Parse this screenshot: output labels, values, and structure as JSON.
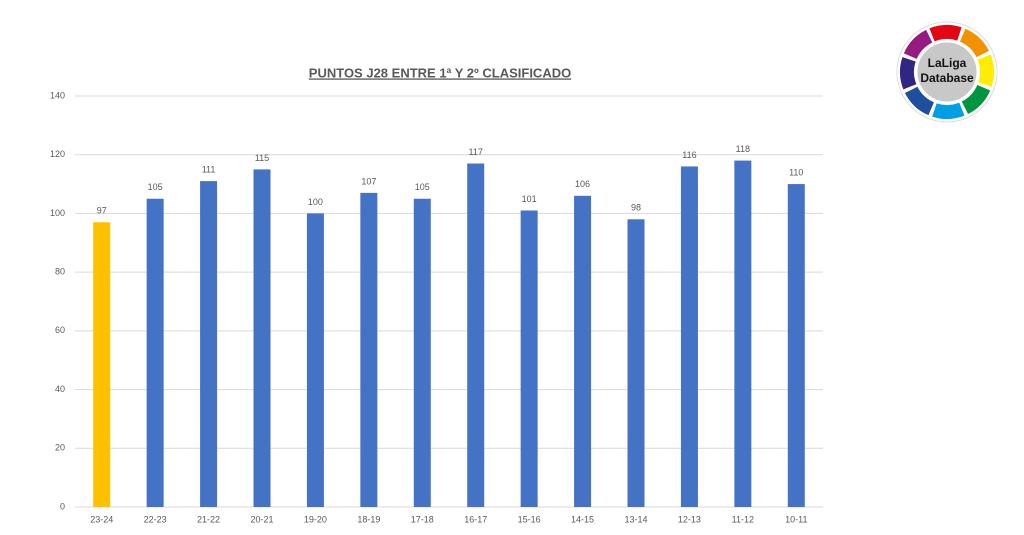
{
  "chart_data": {
    "type": "bar",
    "title": "PUNTOS J28 ENTRE 1ª Y 2º CLASIFICADO",
    "categories": [
      "23-24",
      "22-23",
      "21-22",
      "20-21",
      "19-20",
      "18-19",
      "17-18",
      "16-17",
      "15-16",
      "14-15",
      "13-14",
      "12-13",
      "11-12",
      "10-11"
    ],
    "values": [
      97,
      105,
      111,
      115,
      100,
      107,
      105,
      117,
      101,
      106,
      98,
      116,
      118,
      110
    ],
    "colors": [
      "#ffc000",
      "#4472c4",
      "#4472c4",
      "#4472c4",
      "#4472c4",
      "#4472c4",
      "#4472c4",
      "#4472c4",
      "#4472c4",
      "#4472c4",
      "#4472c4",
      "#4472c4",
      "#4472c4",
      "#4472c4"
    ],
    "ylim": [
      0,
      140
    ],
    "yticks": [
      0,
      20,
      40,
      60,
      80,
      100,
      120,
      140
    ],
    "grid": true
  },
  "logo": {
    "line1": "LaLiga",
    "line2": "Database"
  }
}
